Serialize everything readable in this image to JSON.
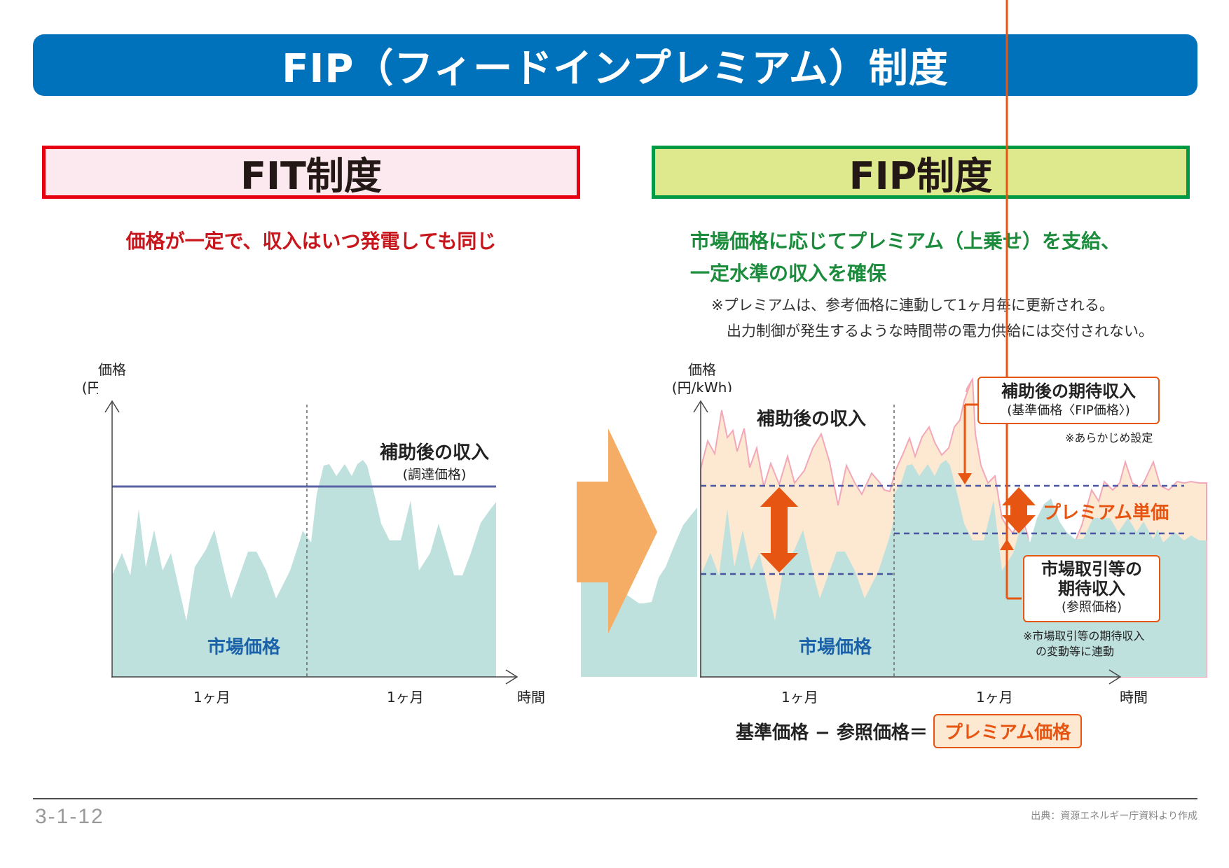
{
  "title": "FIP（フィードインプレミアム）制度",
  "fit": {
    "heading": "FIT制度",
    "lead": "価格が一定で、収入はいつ発電しても同じ",
    "y_axis_label_1": "価格",
    "y_axis_label_2": "(円/kWh)",
    "x_axis_label": "時間",
    "period_1": "1ヶ月",
    "period_2": "1ヶ月",
    "market_label": "市場価格",
    "income_label": "補助後の収入",
    "income_sub": "(調達価格)"
  },
  "fip": {
    "heading": "FIP制度",
    "lead_1": "市場価格に応じてプレミアム（上乗せ）を支給、",
    "lead_2": "一定水準の収入を確保",
    "note_1": "※プレミアムは、参考価格に連動して1ヶ月毎に更新される。",
    "note_2": "出力制御が発生するような時間帯の電力供給には交付されない。",
    "y_axis_label_1": "価格",
    "y_axis_label_2": "(円/kWh)",
    "x_axis_label": "時間",
    "period_1": "1ヶ月",
    "period_2": "1ヶ月",
    "market_label": "市場価格",
    "income_label": "補助後の収入",
    "expected_title": "補助後の期待収入",
    "expected_sub": "(基準価格〈FIP価格〉)",
    "expected_note": "※あらかじめ設定",
    "premium_label": "プレミアム単価",
    "market_expected_1": "市場取引等の",
    "market_expected_2": "期待収入",
    "market_expected_sub": "(参照価格)",
    "market_expected_note_1": "※市場取引等の期待収入",
    "market_expected_note_2": "の変動等に連動",
    "formula_left": "基準価格 − 参照価格＝",
    "formula_right": "プレミアム価格"
  },
  "footer": {
    "page": "3-1-12",
    "source": "出典：資源エネルギー庁資料より作成"
  },
  "colors": {
    "title_bar": "#0072bc",
    "fit_border": "#e60012",
    "fit_fill": "#fce8ef",
    "fip_border": "#009944",
    "fip_fill": "#dde98c",
    "market_area": "#bfe1de",
    "premium_area": "#fde8d2",
    "fit_price_line": "#5a63a8",
    "premium_arrow": "#e65512",
    "big_arrow": "#f5ad66"
  }
}
